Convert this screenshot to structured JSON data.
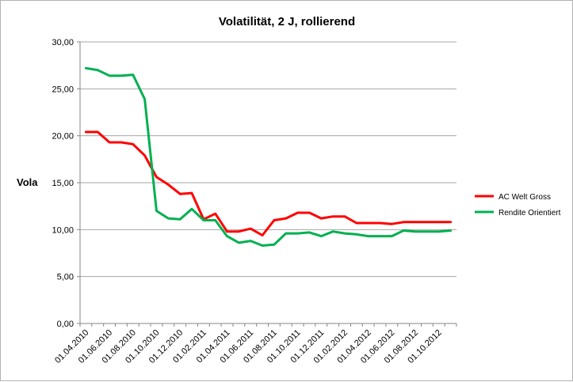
{
  "chart_data": {
    "type": "line",
    "title": "Volatilität,  2 J, rollierend",
    "xlabel": "",
    "ylabel": "Vola",
    "ylim": [
      0,
      30
    ],
    "yticks": [
      "0,00",
      "5,00",
      "10,00",
      "15,00",
      "20,00",
      "25,00",
      "30,00"
    ],
    "xtick_labels": [
      "01.04.2010",
      "01.06.2010",
      "01.08.2010",
      "01.10.2010",
      "01.12.2010",
      "01.02.2011",
      "01.04.2011",
      "01.06.2011",
      "01.08.2011",
      "01.10.2011",
      "01.12.2011",
      "01.02.2012",
      "01.04.2012",
      "01.06.2012",
      "01.08.2012",
      "01.10.2012"
    ],
    "x": [
      "01.04.2010",
      "01.05.2010",
      "01.06.2010",
      "01.07.2010",
      "01.08.2010",
      "01.09.2010",
      "01.10.2010",
      "01.11.2010",
      "01.12.2010",
      "01.01.2011",
      "01.02.2011",
      "01.03.2011",
      "01.04.2011",
      "01.05.2011",
      "01.06.2011",
      "01.07.2011",
      "01.08.2011",
      "01.09.2011",
      "01.10.2011",
      "01.11.2011",
      "01.12.2011",
      "01.01.2012",
      "01.02.2012",
      "01.03.2012",
      "01.04.2012",
      "01.05.2012",
      "01.06.2012",
      "01.07.2012",
      "01.08.2012",
      "01.09.2012",
      "01.10.2012",
      "01.11.2012"
    ],
    "series": [
      {
        "name": "AC Welt Gross",
        "color": "#ff0000",
        "values": [
          20.4,
          20.4,
          19.3,
          19.3,
          19.1,
          17.9,
          15.6,
          14.8,
          13.8,
          13.9,
          11.1,
          11.7,
          9.8,
          9.8,
          10.1,
          9.4,
          11.0,
          11.2,
          11.8,
          11.8,
          11.2,
          11.4,
          11.4,
          10.7,
          10.7,
          10.7,
          10.6,
          10.8,
          10.8,
          10.8,
          10.8,
          10.8
        ]
      },
      {
        "name": "Rendite Orientiert",
        "color": "#00b050",
        "values": [
          27.2,
          27.0,
          26.4,
          26.4,
          26.5,
          23.9,
          12.0,
          11.2,
          11.1,
          12.2,
          11.0,
          11.0,
          9.3,
          8.6,
          8.8,
          8.3,
          8.4,
          9.6,
          9.6,
          9.7,
          9.3,
          9.8,
          9.6,
          9.5,
          9.3,
          9.3,
          9.3,
          9.9,
          9.8,
          9.8,
          9.8,
          9.9
        ]
      }
    ],
    "grid": true,
    "legend_position": "right"
  }
}
